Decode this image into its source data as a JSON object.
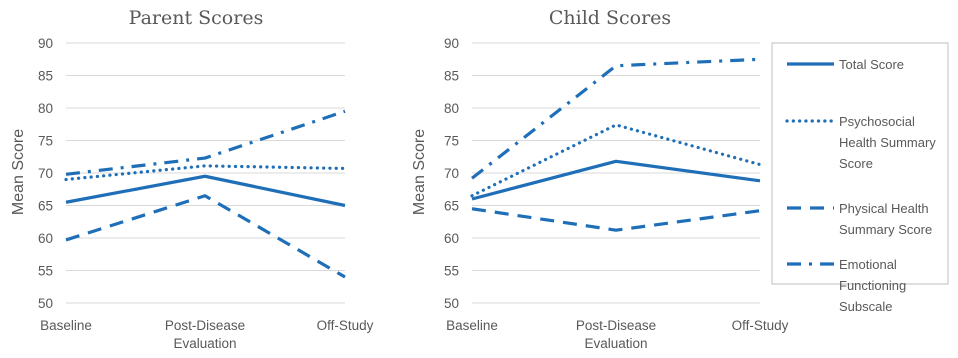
{
  "chart_data": [
    {
      "type": "line",
      "title": "Parent Scores",
      "ylabel": "Mean  Score",
      "xlabel": "",
      "categories": [
        "Baseline",
        "Post-Disease\nEvaluation",
        "Off-Study"
      ],
      "ylim": [
        50,
        90
      ],
      "yticks": [
        50,
        55,
        60,
        65,
        70,
        75,
        80,
        85,
        90
      ],
      "grid": true,
      "series": [
        {
          "name": "Total Score",
          "style": "solid",
          "values": [
            65.5,
            69.5,
            65.0
          ]
        },
        {
          "name": "Psychosocial Health Summary Score",
          "style": "dotted",
          "values": [
            69.0,
            71.1,
            70.7
          ]
        },
        {
          "name": "Physical Health Summary Score",
          "style": "dashed",
          "values": [
            59.7,
            66.5,
            54.0
          ]
        },
        {
          "name": "Emotional Functioning Subscale",
          "style": "dashdot",
          "values": [
            69.8,
            72.3,
            79.5
          ]
        }
      ]
    },
    {
      "type": "line",
      "title": "Child Scores",
      "ylabel": "Mean  Score",
      "xlabel": "",
      "categories": [
        "Baseline",
        "Post-Disease\nEvaluation",
        "Off-Study"
      ],
      "ylim": [
        50,
        90
      ],
      "yticks": [
        50,
        55,
        60,
        65,
        70,
        75,
        80,
        85,
        90
      ],
      "grid": true,
      "series": [
        {
          "name": "Total Score",
          "style": "solid",
          "values": [
            66.0,
            71.8,
            68.8
          ]
        },
        {
          "name": "Psychosocial Health Summary Score",
          "style": "dotted",
          "values": [
            66.5,
            77.4,
            71.3
          ]
        },
        {
          "name": "Physical Health Summary Score",
          "style": "dashed",
          "values": [
            64.5,
            61.2,
            64.2
          ]
        },
        {
          "name": "Emotional Functioning Subscale",
          "style": "dashdot",
          "values": [
            69.2,
            86.5,
            87.5
          ]
        }
      ]
    }
  ],
  "legend": {
    "placement": "right",
    "entries": [
      {
        "label_lines": [
          "Total Score"
        ],
        "style": "solid"
      },
      {
        "label_lines": [
          "Psychosocial",
          "Health Summary",
          "Score"
        ],
        "style": "dotted"
      },
      {
        "label_lines": [
          "Physical Health",
          "Summary Score"
        ],
        "style": "dashed"
      },
      {
        "label_lines": [
          "Emotional",
          "Functioning",
          "Subscale"
        ],
        "style": "dashdot"
      }
    ]
  },
  "colors": {
    "series": "#1f6fb8",
    "text": "#595959",
    "grid": "#d9d9d9",
    "legend_border": "#bfbfbf"
  }
}
